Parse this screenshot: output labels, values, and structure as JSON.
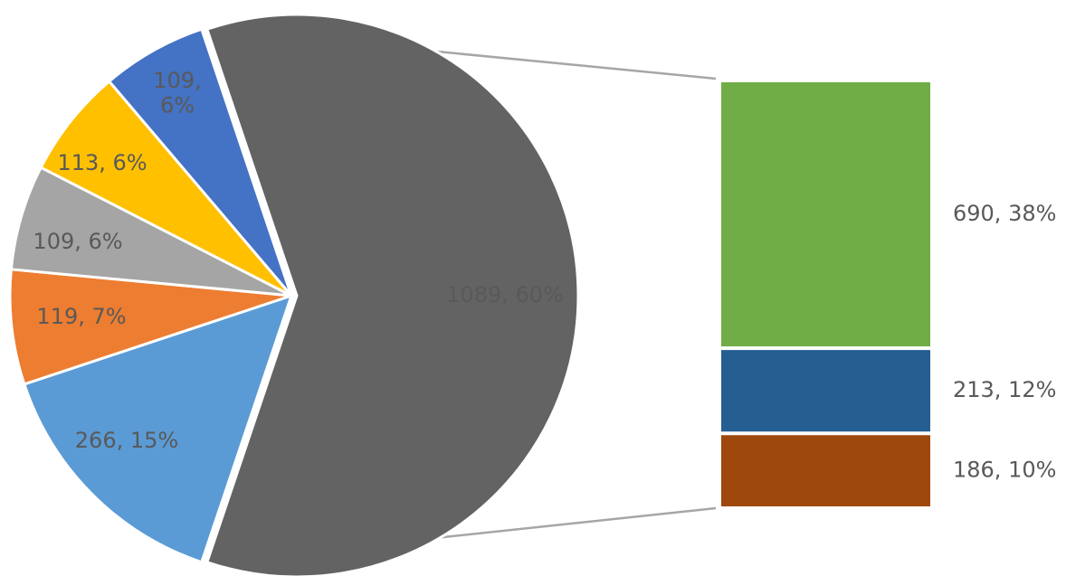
{
  "chart_data": {
    "type": "bar-of-pie",
    "pie": {
      "slices": [
        {
          "value": 1089,
          "percent": "60%",
          "label": "1089, 60%",
          "color": "#636363",
          "exploded": true
        },
        {
          "value": 266,
          "percent": "15%",
          "label": "266, 15%",
          "color": "#5b9bd5"
        },
        {
          "value": 119,
          "percent": "7%",
          "label": "119, 7%",
          "color": "#ed7d31"
        },
        {
          "value": 109,
          "percent": "6%",
          "label": "109, 6%",
          "color": "#a5a5a5"
        },
        {
          "value": 113,
          "percent": "6%",
          "label": "113, 6%",
          "color": "#ffc000"
        },
        {
          "value": 109,
          "percent": "6%",
          "label": "109, 6%",
          "label_lines": [
            "109,",
            "6%"
          ],
          "color": "#4472c4"
        }
      ]
    },
    "bar": {
      "segments": [
        {
          "value": 690,
          "percent": "38%",
          "label": "690, 38%",
          "color": "#70ad47"
        },
        {
          "value": 213,
          "percent": "12%",
          "label": "213, 12%",
          "color": "#255e91"
        },
        {
          "value": 186,
          "percent": "10%",
          "label": "186, 10%",
          "color": "#9e480e"
        }
      ]
    },
    "label_color": "#595959",
    "connector_color": "#a6a6a6"
  }
}
